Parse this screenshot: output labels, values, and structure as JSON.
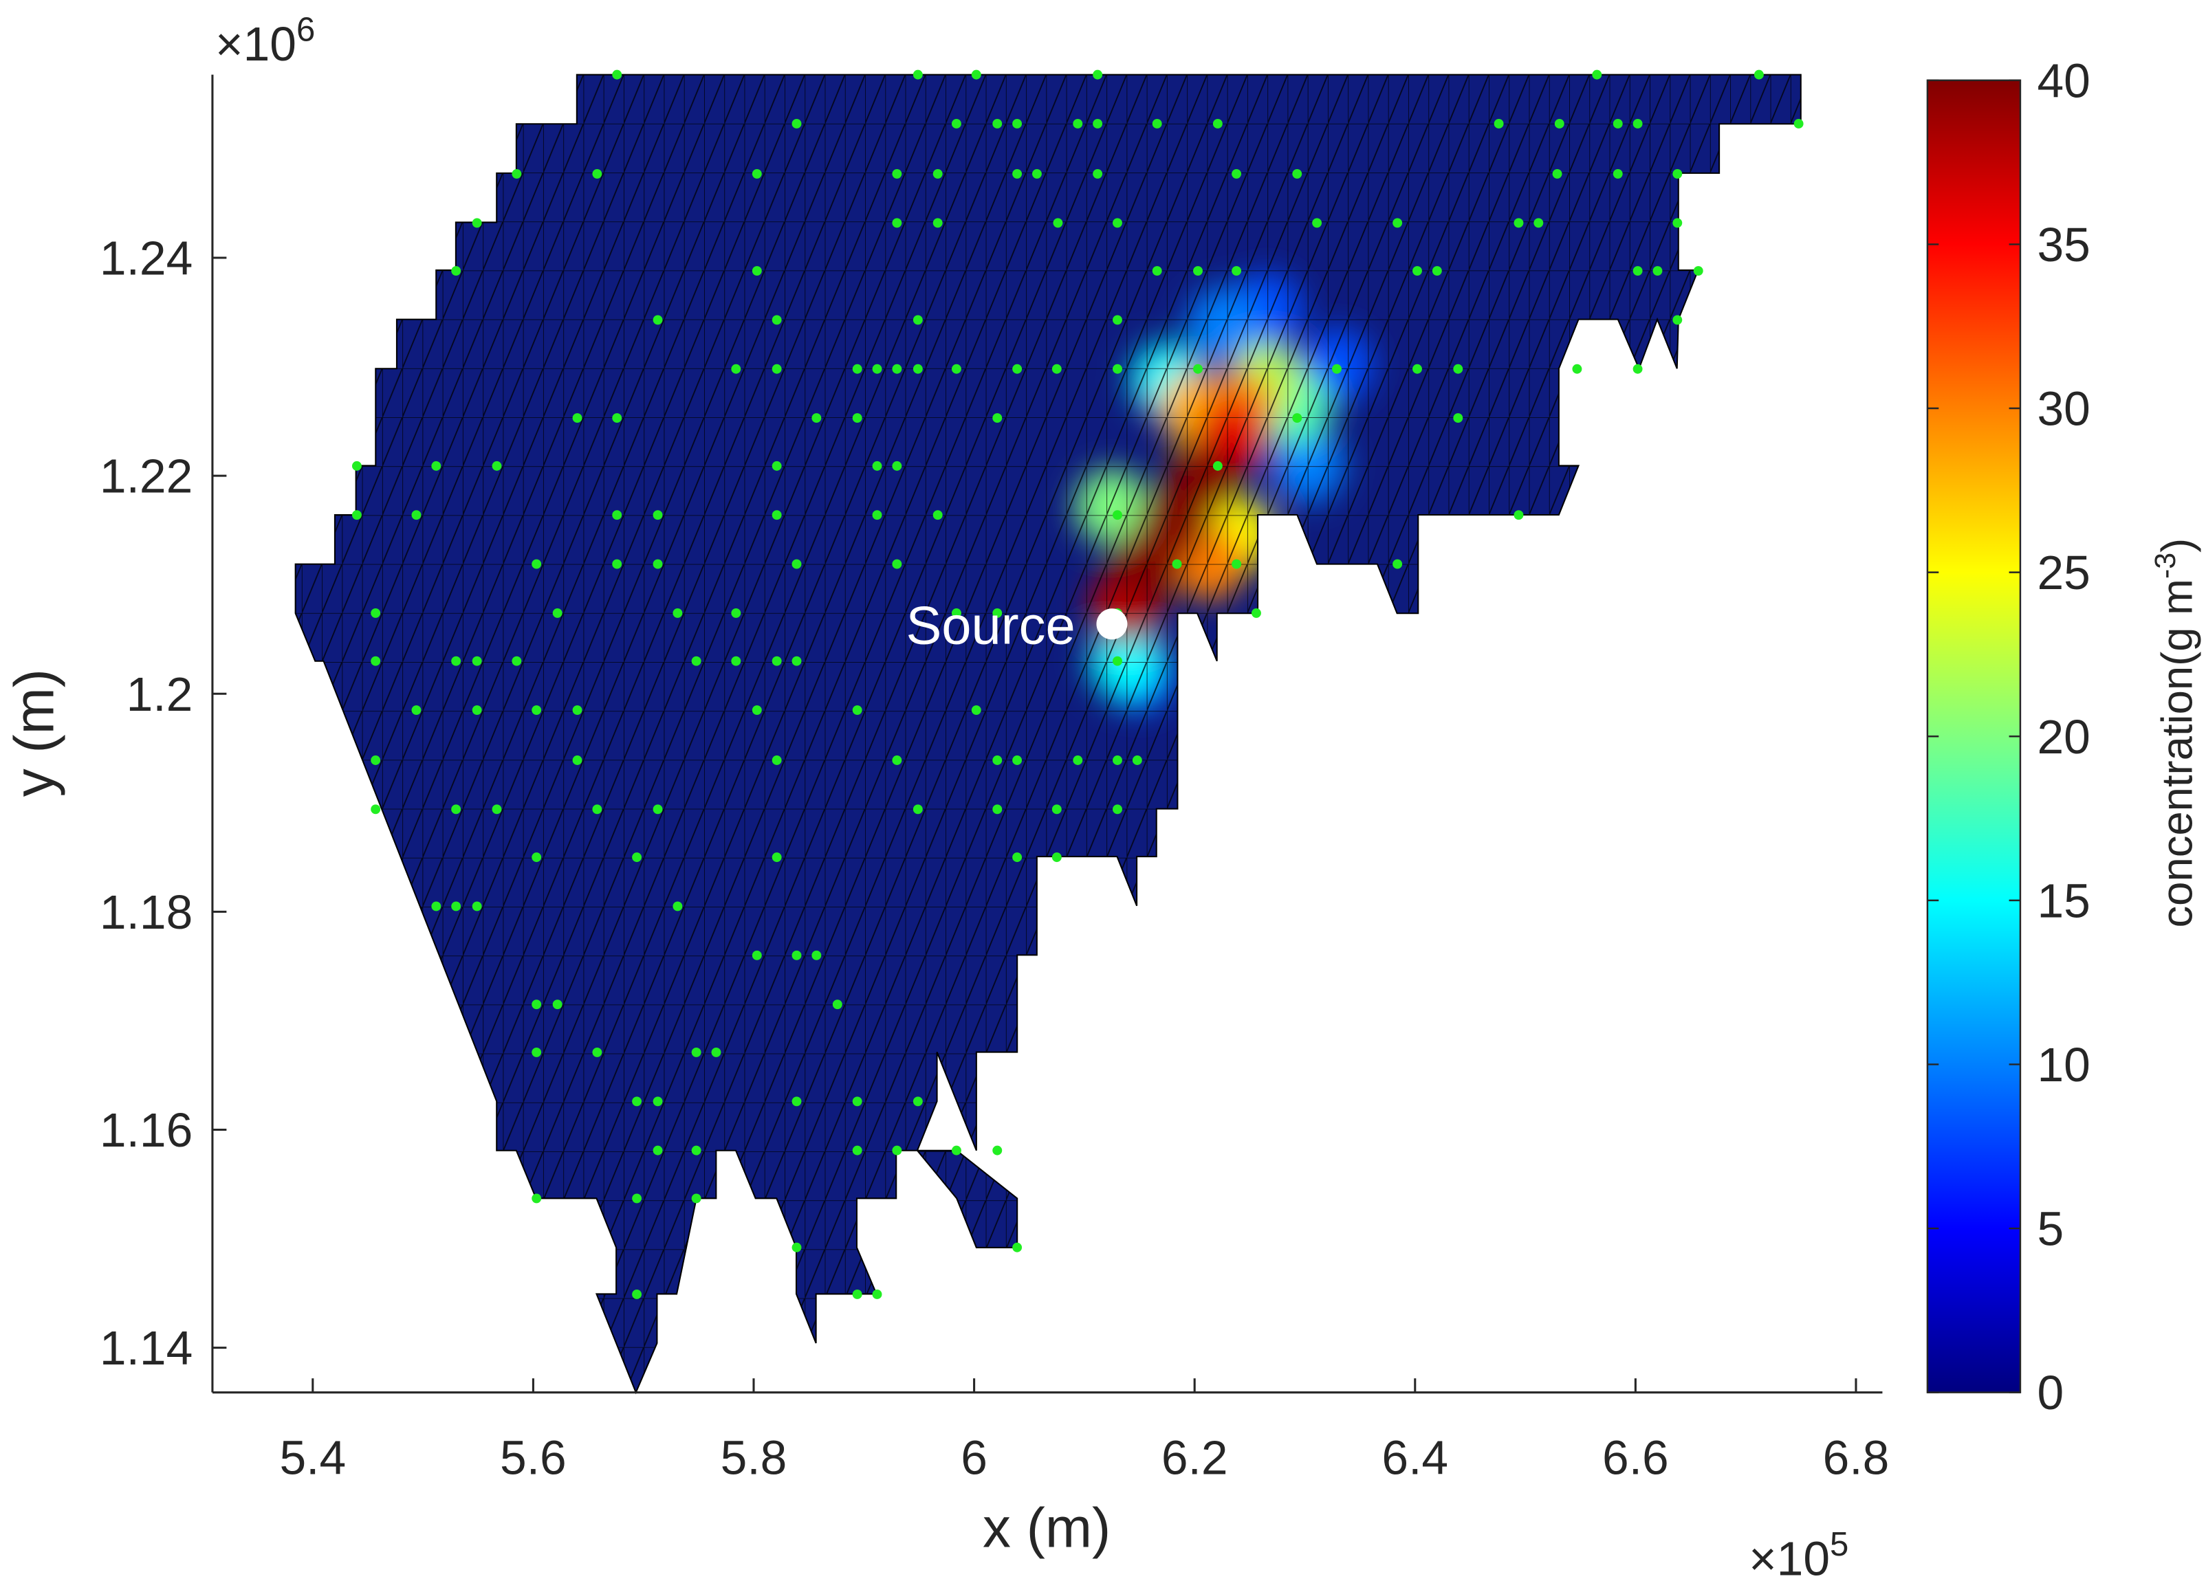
{
  "chart_data": {
    "type": "scatter",
    "xlabel": "x (m)",
    "ylabel": "y (m)",
    "x_multiplier": {
      "base": "×10",
      "exponent": "5"
    },
    "y_multiplier": {
      "base": "×10",
      "exponent": "6"
    },
    "xlim": [
      5.309,
      6.824
    ],
    "ylim": [
      1.1359,
      1.2568
    ],
    "xticks": [
      5.4,
      5.6,
      5.8,
      6,
      6.2,
      6.4,
      6.6,
      6.8
    ],
    "yticks": [
      1.14,
      1.16,
      1.18,
      1.2,
      1.22,
      1.24
    ],
    "domain_color": "#0e1b7d",
    "series": [
      {
        "color": "#22ee22",
        "x": [
          5.676,
          5.949,
          6.002,
          6.112,
          6.565,
          6.712,
          5.839,
          5.984,
          6.021,
          6.039,
          6.094,
          6.112,
          6.166,
          6.221,
          6.476,
          6.531,
          6.584,
          6.602,
          6.748,
          5.585,
          5.658,
          5.803,
          5.93,
          5.967,
          6.039,
          6.057,
          6.112,
          6.238,
          6.293,
          6.529,
          6.584,
          6.638,
          5.549,
          5.93,
          5.967,
          6.076,
          6.13,
          6.311,
          6.384,
          6.494,
          6.512,
          6.638,
          5.53,
          5.803,
          6.166,
          6.203,
          6.238,
          6.402,
          6.42,
          6.602,
          6.62,
          6.657,
          5.713,
          5.821,
          5.949,
          6.13,
          6.638,
          5.784,
          5.821,
          5.894,
          5.912,
          5.93,
          5.949,
          5.984,
          6.039,
          6.075,
          6.13,
          6.203,
          6.329,
          6.402,
          6.439,
          6.547,
          6.602,
          5.64,
          5.676,
          5.857,
          5.894,
          6.021,
          6.293,
          6.439,
          5.44,
          5.512,
          5.567,
          5.821,
          5.912,
          5.93,
          6.221,
          5.44,
          5.494,
          5.676,
          5.713,
          5.821,
          5.912,
          5.967,
          6.13,
          6.494,
          5.603,
          5.676,
          5.713,
          5.839,
          5.93,
          6.184,
          6.238,
          6.384,
          5.457,
          5.622,
          5.731,
          5.784,
          5.984,
          6.021,
          6.13,
          6.256,
          5.457,
          5.53,
          5.549,
          5.585,
          5.748,
          5.784,
          5.821,
          5.839,
          6.13,
          5.494,
          5.549,
          5.603,
          5.64,
          5.803,
          5.894,
          6.002,
          5.457,
          5.64,
          5.821,
          5.93,
          6.021,
          6.039,
          6.094,
          6.13,
          6.148,
          5.457,
          5.53,
          5.567,
          5.658,
          5.713,
          5.949,
          6.021,
          6.075,
          6.13,
          5.603,
          5.694,
          5.821,
          6.039,
          6.075,
          5.512,
          5.53,
          5.549,
          5.731,
          5.803,
          5.839,
          5.857,
          5.603,
          5.622,
          5.876,
          5.603,
          5.658,
          5.748,
          5.766,
          5.694,
          5.713,
          5.839,
          5.894,
          5.949,
          5.713,
          5.748,
          5.894,
          5.93,
          5.984,
          6.021,
          5.603,
          5.694,
          5.748,
          5.839,
          6.039,
          5.694,
          5.894,
          5.912
        ],
        "y": [
          1.2568,
          1.2568,
          1.2568,
          1.2568,
          1.2568,
          1.2568,
          1.2523,
          1.2523,
          1.2523,
          1.2523,
          1.2523,
          1.2523,
          1.2523,
          1.2523,
          1.2523,
          1.2523,
          1.2523,
          1.2523,
          1.2523,
          1.2477,
          1.2477,
          1.2477,
          1.2477,
          1.2477,
          1.2477,
          1.2477,
          1.2477,
          1.2477,
          1.2477,
          1.2477,
          1.2477,
          1.2477,
          1.2432,
          1.2432,
          1.2432,
          1.2432,
          1.2432,
          1.2432,
          1.2432,
          1.2432,
          1.2432,
          1.2432,
          1.2388,
          1.2388,
          1.2388,
          1.2388,
          1.2388,
          1.2388,
          1.2388,
          1.2388,
          1.2388,
          1.2388,
          1.2343,
          1.2343,
          1.2343,
          1.2343,
          1.2343,
          1.2298,
          1.2298,
          1.2298,
          1.2298,
          1.2298,
          1.2298,
          1.2298,
          1.2298,
          1.2298,
          1.2298,
          1.2298,
          1.2298,
          1.2298,
          1.2298,
          1.2298,
          1.2298,
          1.2253,
          1.2253,
          1.2253,
          1.2253,
          1.2253,
          1.2253,
          1.2253,
          1.2209,
          1.2209,
          1.2209,
          1.2209,
          1.2209,
          1.2209,
          1.2209,
          1.2164,
          1.2164,
          1.2164,
          1.2164,
          1.2164,
          1.2164,
          1.2164,
          1.2164,
          1.2164,
          1.2119,
          1.2119,
          1.2119,
          1.2119,
          1.2119,
          1.2119,
          1.2119,
          1.2119,
          1.2074,
          1.2074,
          1.2074,
          1.2074,
          1.2074,
          1.2074,
          1.2074,
          1.2074,
          1.203,
          1.203,
          1.203,
          1.203,
          1.203,
          1.203,
          1.203,
          1.203,
          1.203,
          1.1985,
          1.1985,
          1.1985,
          1.1985,
          1.1985,
          1.1985,
          1.1985,
          1.1939,
          1.1939,
          1.1939,
          1.1939,
          1.1939,
          1.1939,
          1.1939,
          1.1939,
          1.1939,
          1.1894,
          1.1894,
          1.1894,
          1.1894,
          1.1894,
          1.1894,
          1.1894,
          1.1894,
          1.1894,
          1.185,
          1.185,
          1.185,
          1.185,
          1.185,
          1.1805,
          1.1805,
          1.1805,
          1.1805,
          1.176,
          1.176,
          1.176,
          1.1715,
          1.1715,
          1.1715,
          1.1671,
          1.1671,
          1.1671,
          1.1671,
          1.1626,
          1.1626,
          1.1626,
          1.1626,
          1.1626,
          1.1581,
          1.1581,
          1.1581,
          1.1581,
          1.1581,
          1.1581,
          1.1537,
          1.1537,
          1.1537,
          1.1492,
          1.1492,
          1.1449,
          1.1449,
          1.1449
        ]
      }
    ],
    "source": {
      "label": "Source",
      "x": 6.125,
      "y": 1.2064,
      "color": "#ffffff"
    },
    "field": {
      "x": [
        6.329,
        6.265,
        6.15,
        6.303,
        6.227,
        6.176,
        6.138,
        6.291,
        6.125,
        6.265,
        6.24,
        6.201,
        6.24,
        6.214,
        6.233,
        6.138,
        6.157,
        6.182,
        6.208
      ],
      "y": [
        1.2301,
        1.2352,
        1.2017,
        1.221,
        1.2339,
        1.2288,
        1.203,
        1.2262,
        1.2172,
        1.2288,
        1.2146,
        1.2262,
        1.2262,
        1.212,
        1.2236,
        1.2081,
        1.212,
        1.2159,
        1.2197
      ],
      "values": [
        8,
        8,
        8,
        10,
        10,
        15,
        15,
        18,
        20,
        22,
        25,
        28,
        30,
        30,
        36,
        38,
        40,
        40,
        40
      ]
    },
    "colorbar": {
      "label": "concentration(g m",
      "label_exponent": "-3",
      "label_end": ")",
      "colormap": "jet",
      "clim": [
        0,
        40
      ],
      "ticks": [
        0,
        5,
        10,
        15,
        20,
        25,
        30,
        35,
        40
      ]
    }
  }
}
